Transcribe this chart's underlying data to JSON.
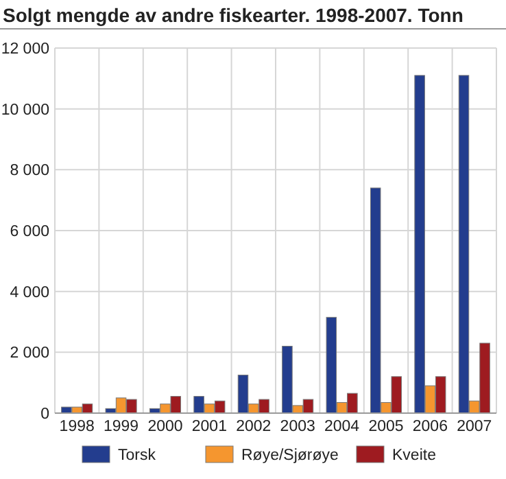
{
  "chart_data": {
    "type": "bar",
    "title": "Solgt mengde av andre fiskearter. 1998-2007. Tonn",
    "categories": [
      "1998",
      "1999",
      "2000",
      "2001",
      "2002",
      "2003",
      "2004",
      "2005",
      "2006",
      "2007"
    ],
    "series": [
      {
        "name": "Torsk",
        "color": "#233d8e",
        "values": [
          200,
          150,
          150,
          550,
          1250,
          2200,
          3150,
          7400,
          11100,
          11100
        ]
      },
      {
        "name": "Røye/Sjørøye",
        "color": "#f5962f",
        "values": [
          200,
          500,
          300,
          300,
          300,
          250,
          350,
          350,
          900,
          400
        ]
      },
      {
        "name": "Kveite",
        "color": "#9e1b20",
        "values": [
          300,
          450,
          550,
          400,
          450,
          450,
          650,
          1200,
          1200,
          2300
        ]
      }
    ],
    "ylim": [
      0,
      12000
    ],
    "yticks": [
      {
        "value": 0,
        "label": "0"
      },
      {
        "value": 2000,
        "label": "2 000"
      },
      {
        "value": 4000,
        "label": "4 000"
      },
      {
        "value": 6000,
        "label": "6 000"
      },
      {
        "value": 8000,
        "label": "8 000"
      },
      {
        "value": 10000,
        "label": "10 000"
      },
      {
        "value": 12000,
        "label": "12 000"
      }
    ],
    "grid": true,
    "legend": "bottom"
  }
}
